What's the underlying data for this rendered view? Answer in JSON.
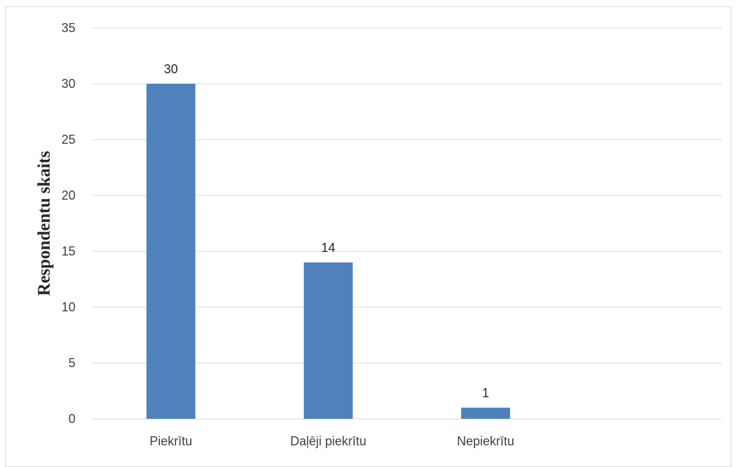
{
  "chart_data": {
    "type": "bar",
    "categories": [
      "Piekrītu",
      "Daļēji piekrītu",
      "Nepiekrītu"
    ],
    "values": [
      30,
      14,
      1
    ],
    "data_labels": [
      "30",
      "14",
      "1"
    ],
    "title": "",
    "xlabel": "",
    "ylabel": "Respondentu skaits",
    "ylim": [
      0,
      35
    ],
    "yticks": [
      0,
      5,
      10,
      15,
      20,
      25,
      30,
      35
    ],
    "grid": true,
    "bar_color": "#4f81bd",
    "grid_color": "#d9d9d9"
  }
}
